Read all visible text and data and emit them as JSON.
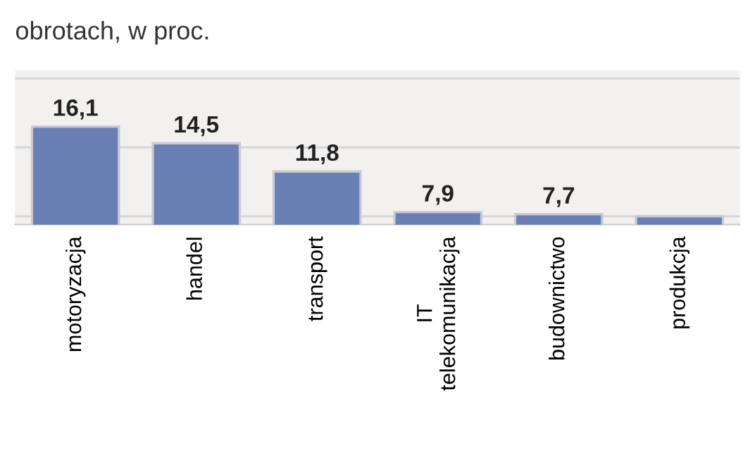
{
  "chart_data": {
    "type": "bar",
    "title": "obrotach, w proc.",
    "categories": [
      "motoryzacja",
      "handel",
      "transport",
      "IT\ntelekomunikacja",
      "budownictwo",
      "produkcja"
    ],
    "values": [
      16.1,
      14.5,
      11.8,
      7.9,
      7.7,
      7.5
    ],
    "value_labels": [
      "16,1",
      "14,5",
      "11,8",
      "7,9",
      "7,7",
      null
    ],
    "color": "#6a7fb3",
    "ylim": [
      6.7,
      21.5
    ],
    "yticks": [
      {
        "value": 7.5,
        "label": null
      },
      {
        "value": 14.1,
        "label": null
      },
      {
        "value": 20.7,
        "label": null
      }
    ],
    "grid": "y"
  }
}
